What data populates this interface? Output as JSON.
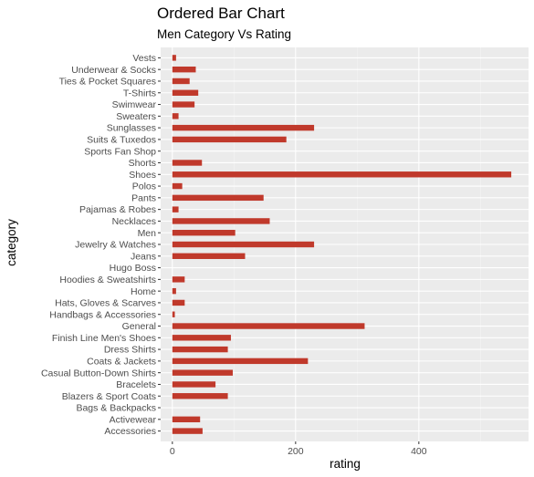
{
  "chart_data": {
    "type": "bar",
    "orientation": "horizontal",
    "title": "Ordered Bar Chart",
    "subtitle": "Men Category Vs Rating",
    "xlabel": "rating",
    "ylabel": "category",
    "xlim": [
      -19,
      578
    ],
    "x_ticks": [
      0,
      200,
      400
    ],
    "grid": true,
    "legend": "none",
    "colors": {
      "bar": "#c0392b",
      "panel": "#ebebeb",
      "grid_major": "#ffffff",
      "grid_minor": "#f5f5f5",
      "tick_text": "#4d4d4d"
    },
    "categories": [
      "Vests",
      "Underwear & Socks",
      "Ties & Pocket Squares",
      "T-Shirts",
      "Swimwear",
      "Sweaters",
      "Sunglasses",
      "Suits & Tuxedos",
      "Sports Fan Shop",
      "Shorts",
      "Shoes",
      "Polos",
      "Pants",
      "Pajamas & Robes",
      "Necklaces",
      "Men",
      "Jewelry & Watches",
      "Jeans",
      "Hugo Boss",
      "Hoodies & Sweatshirts",
      "Home",
      "Hats, Gloves & Scarves",
      "Handbags & Accessories",
      "General",
      "Finish Line Men's Shoes",
      "Dress Shirts",
      "Coats & Jackets",
      "Casual Button-Down Shirts",
      "Bracelets",
      "Blazers & Sport Coats",
      "Bags & Backpacks",
      "Activewear",
      "Accessories"
    ],
    "values": [
      6,
      38,
      28,
      42,
      36,
      10,
      230,
      185,
      0,
      48,
      550,
      16,
      148,
      10,
      158,
      102,
      230,
      118,
      0,
      20,
      6,
      20,
      4,
      312,
      95,
      90,
      220,
      98,
      70,
      90,
      0,
      45,
      49
    ]
  }
}
